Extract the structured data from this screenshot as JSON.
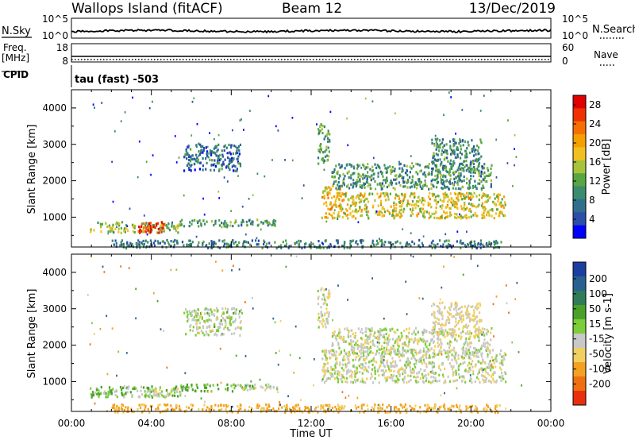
{
  "header": {
    "station": "Wallops Island (fitACF)",
    "beam": "Beam 12",
    "date": "13/Dec/2019"
  },
  "strips": {
    "nsky": {
      "label": "N.Sky",
      "tick_top": "10^5",
      "tick_bottom": "10^0",
      "right_label": "N.Search",
      "right_tick_top": "10^5",
      "right_tick_bottom": "10^0",
      "noise_level": 0.6
    },
    "freq": {
      "label_line1": "Freq.",
      "label_line2": "[MHz]",
      "tick_top": "18",
      "tick_bottom": "8",
      "right_label": "Nave",
      "right_tick_top": "60",
      "right_tick_bottom": "0"
    },
    "cpid": {
      "label": "CPID",
      "value": "tau (fast) -503"
    }
  },
  "colors": {
    "power_scale": [
      "#0000ff",
      "#2b4ea8",
      "#2f6f8c",
      "#3a8c6e",
      "#58a642",
      "#a8c23a",
      "#f0c020",
      "#f5a000",
      "#f57000",
      "#f03000",
      "#e00000"
    ],
    "velocity_scale": [
      "#1a3fa0",
      "#2a6090",
      "#2f7b5a",
      "#4aa12a",
      "#7ccd3a",
      "#c8c8c8",
      "#f0d060",
      "#f5a020",
      "#f07010",
      "#e83010",
      "#e00000"
    ]
  },
  "chart_data": [
    {
      "type": "heatmap",
      "title": "",
      "xlabel": "Time UT",
      "ylabel": "Slant Range [km]",
      "x_ticks": [
        "00:00",
        "04:00",
        "08:00",
        "12:00",
        "16:00",
        "20:00",
        "00:00"
      ],
      "x_range_hours": [
        0,
        24
      ],
      "y_ticks": [
        "1000",
        "2000",
        "3000",
        "4000"
      ],
      "y_range_km": [
        180,
        4500
      ],
      "colorbar": {
        "label": "Power [dB]",
        "ticks": [
          "4",
          "8",
          "12",
          "16",
          "20",
          "24",
          "28"
        ],
        "range": [
          0,
          30
        ]
      },
      "regions": [
        {
          "t0": 0.9,
          "t1": 5.4,
          "r0": 600,
          "r1": 900,
          "value": 14
        },
        {
          "t0": 3.3,
          "t1": 4.6,
          "r0": 600,
          "r1": 900,
          "value": 27
        },
        {
          "t0": 5.4,
          "t1": 8.2,
          "r0": 760,
          "r1": 960,
          "value": 11
        },
        {
          "t0": 8.3,
          "t1": 10.3,
          "r0": 800,
          "r1": 960,
          "value": 9
        },
        {
          "t0": 5.6,
          "t1": 8.5,
          "r0": 2300,
          "r1": 3050,
          "value": 7
        },
        {
          "t0": 12.5,
          "t1": 13.6,
          "r0": 1000,
          "r1": 1900,
          "value": 19
        },
        {
          "t0": 13.3,
          "t1": 21.7,
          "r0": 1000,
          "r1": 1700,
          "value": 17
        },
        {
          "t0": 13.0,
          "t1": 21.0,
          "r0": 1800,
          "r1": 2500,
          "value": 10
        },
        {
          "t0": 12.3,
          "t1": 12.9,
          "r0": 2500,
          "r1": 3600,
          "value": 12
        },
        {
          "t0": 18.0,
          "t1": 20.5,
          "r0": 2300,
          "r1": 3200,
          "value": 9
        },
        {
          "t0": 2.0,
          "t1": 21.5,
          "r0": 180,
          "r1": 400,
          "value": 8
        }
      ]
    },
    {
      "type": "heatmap",
      "title": "",
      "xlabel": "Time UT",
      "ylabel": "Slant Range [km]",
      "x_ticks": [
        "00:00",
        "04:00",
        "08:00",
        "12:00",
        "16:00",
        "20:00",
        "00:00"
      ],
      "x_range_hours": [
        0,
        24
      ],
      "y_ticks": [
        "1000",
        "2000",
        "3000",
        "4000"
      ],
      "y_range_km": [
        180,
        4500
      ],
      "colorbar": {
        "label": "Velocity [m s-1]",
        "ticks": [
          "200",
          "100",
          "50",
          "15",
          "-15",
          "-50",
          "-100",
          "-200"
        ],
        "range": [
          -250,
          250
        ]
      },
      "regions": [
        {
          "t0": 0.9,
          "t1": 5.4,
          "r0": 600,
          "r1": 900,
          "value": 30
        },
        {
          "t0": 3.3,
          "t1": 5.5,
          "r0": 600,
          "r1": 850,
          "value": 0
        },
        {
          "t0": 5.4,
          "t1": 8.2,
          "r0": 760,
          "r1": 960,
          "value": 40
        },
        {
          "t0": 8.3,
          "t1": 10.3,
          "r0": 800,
          "r1": 960,
          "value": 10
        },
        {
          "t0": 5.6,
          "t1": 8.5,
          "r0": 2300,
          "r1": 3050,
          "value": 5
        },
        {
          "t0": 12.5,
          "t1": 21.7,
          "r0": 1000,
          "r1": 1900,
          "value": 0
        },
        {
          "t0": 13.0,
          "t1": 21.0,
          "r0": 1800,
          "r1": 2500,
          "value": 0
        },
        {
          "t0": 12.3,
          "t1": 12.9,
          "r0": 2500,
          "r1": 3600,
          "value": 0
        },
        {
          "t0": 18.0,
          "t1": 20.5,
          "r0": 2300,
          "r1": 3200,
          "value": -20
        },
        {
          "t0": 2.0,
          "t1": 21.5,
          "r0": 180,
          "r1": 400,
          "value": -60
        }
      ]
    }
  ]
}
